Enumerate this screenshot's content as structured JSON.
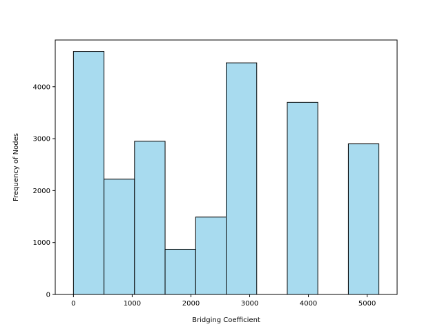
{
  "chart_data": {
    "type": "bar",
    "subtype": "histogram",
    "title": "",
    "xlabel": "Bridging Coefficient",
    "ylabel": "Frequency of Nodes",
    "xlim": [
      -310,
      5510
    ],
    "ylim": [
      0,
      4900
    ],
    "xticks": [
      0,
      1000,
      2000,
      3000,
      4000,
      5000
    ],
    "yticks": [
      0,
      1000,
      2000,
      3000,
      4000
    ],
    "grid": false,
    "legend": null,
    "bar_color": "#a8dbef",
    "edge_color": "#000000",
    "bins": [
      {
        "x0": 0,
        "x1": 520,
        "value": 4680
      },
      {
        "x0": 520,
        "x1": 1040,
        "value": 2220
      },
      {
        "x0": 1040,
        "x1": 1560,
        "value": 2950
      },
      {
        "x0": 1560,
        "x1": 2080,
        "value": 870
      },
      {
        "x0": 2080,
        "x1": 2600,
        "value": 1490
      },
      {
        "x0": 2600,
        "x1": 3120,
        "value": 4460
      },
      {
        "x0": 3120,
        "x1": 3640,
        "value": 0
      },
      {
        "x0": 3640,
        "x1": 4160,
        "value": 3700
      },
      {
        "x0": 4160,
        "x1": 4680,
        "value": 0
      },
      {
        "x0": 4680,
        "x1": 5200,
        "value": 2900
      }
    ]
  }
}
